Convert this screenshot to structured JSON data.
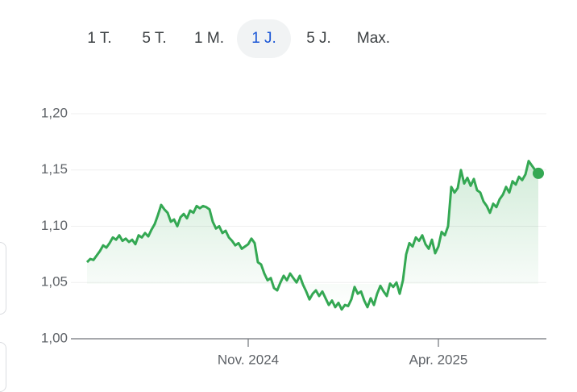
{
  "range_tabs": [
    "1 T.",
    "5 T.",
    "1 M.",
    "1 J.",
    "5 J.",
    "Max."
  ],
  "selected_tab": 3,
  "chart_data": {
    "type": "line",
    "categories": [
      null,
      null,
      null,
      null,
      null,
      null,
      null,
      null,
      null,
      null,
      null,
      null,
      null,
      null,
      null,
      null,
      null,
      null,
      null,
      null,
      null,
      null,
      null,
      null,
      null,
      null,
      null,
      null,
      null,
      null,
      null,
      null,
      null,
      null,
      null,
      null,
      null,
      null,
      null,
      null,
      null,
      null,
      null,
      null,
      null,
      null,
      null,
      null,
      null,
      null,
      "Nov. 2024",
      null,
      null,
      null,
      null,
      null,
      null,
      null,
      null,
      null,
      null,
      null,
      null,
      null,
      null,
      null,
      null,
      null,
      null,
      null,
      null,
      null,
      null,
      null,
      null,
      null,
      null,
      null,
      null,
      null,
      null,
      null,
      null,
      null,
      null,
      null,
      null,
      null,
      null,
      null,
      null,
      null,
      null,
      null,
      null,
      null,
      null,
      null,
      null,
      null,
      null,
      null,
      null,
      null,
      null,
      null,
      null,
      null,
      null,
      "Apr. 2025",
      null,
      null,
      null,
      null,
      null,
      null,
      null,
      null,
      null,
      null,
      null,
      null,
      null,
      null,
      null,
      null,
      null,
      null,
      null,
      null,
      null,
      null,
      null,
      null,
      null,
      null,
      null,
      null,
      null,
      null,
      null
    ],
    "series": [
      {
        "color": "#34a853",
        "values": [
          1.068,
          1.071,
          1.07,
          1.074,
          1.078,
          1.083,
          1.081,
          1.085,
          1.09,
          1.088,
          1.092,
          1.087,
          1.089,
          1.086,
          1.088,
          1.084,
          1.092,
          1.09,
          1.094,
          1.091,
          1.097,
          1.102,
          1.11,
          1.119,
          1.115,
          1.112,
          1.104,
          1.106,
          1.1,
          1.108,
          1.111,
          1.107,
          1.114,
          1.112,
          1.118,
          1.116,
          1.118,
          1.117,
          1.115,
          1.104,
          1.098,
          1.1,
          1.094,
          1.096,
          1.09,
          1.087,
          1.083,
          1.085,
          1.08,
          1.082,
          1.084,
          1.089,
          1.085,
          1.068,
          1.066,
          1.058,
          1.052,
          1.054,
          1.045,
          1.043,
          1.05,
          1.056,
          1.052,
          1.058,
          1.054,
          1.05,
          1.056,
          1.048,
          1.042,
          1.035,
          1.04,
          1.043,
          1.038,
          1.042,
          1.036,
          1.03,
          1.034,
          1.028,
          1.032,
          1.026,
          1.03,
          1.029,
          1.035,
          1.046,
          1.04,
          1.042,
          1.034,
          1.028,
          1.036,
          1.03,
          1.04,
          1.047,
          1.042,
          1.038,
          1.049,
          1.046,
          1.05,
          1.04,
          1.052,
          1.075,
          1.085,
          1.082,
          1.09,
          1.087,
          1.092,
          1.084,
          1.08,
          1.088,
          1.076,
          1.082,
          1.095,
          1.092,
          1.1,
          1.135,
          1.13,
          1.134,
          1.15,
          1.138,
          1.143,
          1.136,
          1.142,
          1.132,
          1.13,
          1.122,
          1.118,
          1.112,
          1.12,
          1.117,
          1.124,
          1.128,
          1.135,
          1.13,
          1.14,
          1.137,
          1.144,
          1.141,
          1.146,
          1.158,
          1.154,
          1.15,
          1.147
        ]
      }
    ],
    "ylim": [
      1.0,
      1.2
    ],
    "yticks": [
      {
        "value": 1.0,
        "label": "1,00"
      },
      {
        "value": 1.05,
        "label": "1,05"
      },
      {
        "value": 1.1,
        "label": "1,10"
      },
      {
        "value": 1.15,
        "label": "1,15"
      },
      {
        "value": 1.2,
        "label": "1,20"
      }
    ],
    "grid": true
  }
}
